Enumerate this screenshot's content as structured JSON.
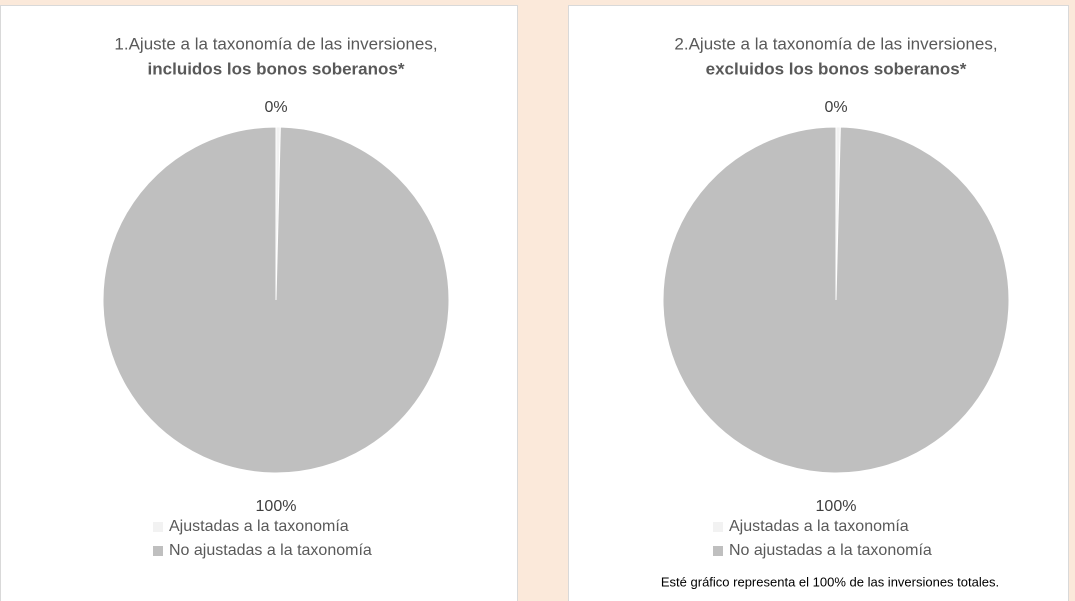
{
  "chart_data": [
    {
      "type": "pie",
      "title": "1.Ajuste a la taxonomía de las inversiones,",
      "subtitle": "incluidos los bonos soberanos*",
      "categories": [
        "Ajustadas a la taxonomía",
        "No ajustadas a la taxonomía"
      ],
      "values": [
        0.4,
        99.6
      ],
      "value_labels": [
        "0%",
        "100%"
      ],
      "colors": [
        "#f2f2f2",
        "#bfbfbf"
      ]
    },
    {
      "type": "pie",
      "title": "2.Ajuste a la taxonomía de las inversiones,",
      "subtitle": "excluidos los bonos soberanos*",
      "categories": [
        "Ajustadas a la taxonomía",
        "No ajustadas a la taxonomía"
      ],
      "values": [
        0.4,
        99.6
      ],
      "value_labels": [
        "0%",
        "100%"
      ],
      "colors": [
        "#f2f2f2",
        "#bfbfbf"
      ]
    }
  ],
  "footnote": "Esté gráfico representa el 100% de las inversiones totales."
}
